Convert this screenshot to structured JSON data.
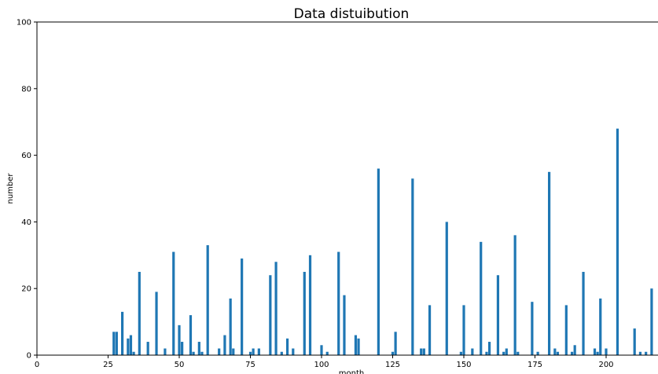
{
  "chart_data": {
    "type": "bar",
    "title": "Data distuibution",
    "xlabel": "month",
    "ylabel": "number",
    "xlim": [
      0,
      218
    ],
    "ylim": [
      0,
      100
    ],
    "xticks": [
      0,
      25,
      50,
      75,
      100,
      125,
      150,
      175,
      200
    ],
    "yticks": [
      0,
      20,
      40,
      60,
      80,
      100
    ],
    "grid": false,
    "legend": "none",
    "color": "#1f77b4",
    "series": [
      {
        "x": [
          27,
          28,
          30,
          32,
          33,
          34,
          36,
          39,
          42,
          45,
          48,
          50,
          51,
          54,
          55,
          57,
          58,
          60,
          64,
          66,
          68,
          69,
          72,
          75,
          76,
          78,
          82,
          84,
          86,
          88,
          90,
          94,
          96,
          100,
          102,
          106,
          108,
          112,
          113,
          120,
          125,
          126,
          132,
          135,
          136,
          138,
          144,
          149,
          150,
          153,
          156,
          158,
          159,
          162,
          164,
          165,
          168,
          169,
          174,
          176,
          180,
          182,
          183,
          186,
          188,
          189,
          192,
          196,
          197,
          198,
          200,
          204,
          210,
          212,
          214,
          216
        ],
        "values": [
          7,
          7,
          13,
          5,
          6,
          1,
          25,
          4,
          19,
          2,
          31,
          9,
          4,
          12,
          1,
          4,
          1,
          33,
          2,
          6,
          17,
          2,
          29,
          1,
          2,
          2,
          24,
          28,
          1,
          5,
          2,
          25,
          30,
          3,
          1,
          31,
          18,
          6,
          5,
          56,
          1,
          7,
          53,
          2,
          2,
          15,
          40,
          1,
          15,
          2,
          34,
          1,
          4,
          24,
          1,
          2,
          36,
          1,
          16,
          1,
          55,
          2,
          1,
          15,
          1,
          3,
          25,
          2,
          1,
          17,
          2,
          68,
          8,
          1,
          1,
          20
        ]
      }
    ]
  }
}
